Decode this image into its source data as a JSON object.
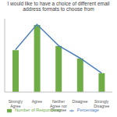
{
  "chart_data": {
    "type": "bar",
    "title": "I would like to have a choice of different email address formats to choose from",
    "categories": [
      "Strongly Agree",
      "Agree",
      "Neither Agree nor Disagree",
      "Disagree",
      "Strongly Disagree"
    ],
    "series": [
      {
        "name": "Number of Respondents",
        "type": "bar",
        "color": "#70ad47",
        "values": [
          20,
          32,
          22,
          16,
          9
        ]
      },
      {
        "name": "Percentage",
        "type": "line",
        "color": "#4f81bd",
        "values": [
          20.2,
          32.3,
          22.2,
          16.2,
          9.1
        ]
      }
    ],
    "ylim": [
      0,
      35
    ],
    "grid": false,
    "tick_labels": "x"
  }
}
